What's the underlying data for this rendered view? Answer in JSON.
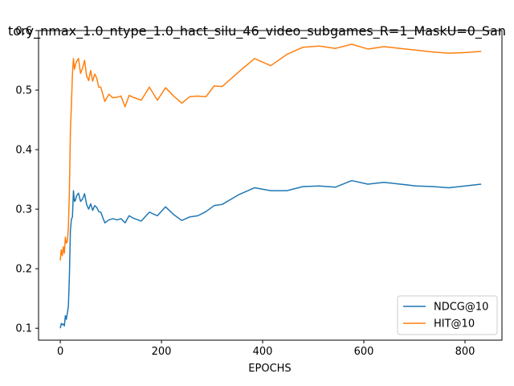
{
  "chart_data": {
    "type": "line",
    "title": "tory_nmax_1.0_ntype_1.0_hact_silu_46_video_subgames_R=1_MaskU=0_San",
    "xlabel": "EPOCHS",
    "ylabel": "",
    "xlim": [
      -43,
      873
    ],
    "ylim": [
      0.08,
      0.6
    ],
    "xticks": [
      0,
      200,
      400,
      600,
      800
    ],
    "yticks": [
      0.1,
      0.2,
      0.3,
      0.4,
      0.5,
      0.6
    ],
    "ytick_labels": [
      "0.1",
      "0.2",
      "0.3",
      "0.4",
      "0.5",
      "0.6"
    ],
    "legend_position": "lower-right",
    "grid": false,
    "series": [
      {
        "name": "NDCG@10",
        "color": "#1f77b4",
        "x": [
          0,
          2,
          4,
          6,
          8,
          10,
          12,
          14,
          16,
          18,
          20,
          22,
          24,
          26,
          28,
          30,
          32,
          36,
          40,
          44,
          48,
          52,
          56,
          60,
          64,
          68,
          72,
          76,
          80,
          88,
          96,
          104,
          112,
          120,
          128,
          136,
          144,
          160,
          176,
          192,
          208,
          224,
          240,
          256,
          272,
          288,
          304,
          320,
          352,
          384,
          416,
          448,
          480,
          512,
          544,
          576,
          608,
          640,
          672,
          704,
          736,
          768,
          800,
          832
        ],
        "y": [
          0.1,
          0.108,
          0.106,
          0.107,
          0.104,
          0.121,
          0.115,
          0.126,
          0.137,
          0.188,
          0.265,
          0.283,
          0.287,
          0.331,
          0.313,
          0.315,
          0.322,
          0.327,
          0.313,
          0.317,
          0.326,
          0.308,
          0.3,
          0.309,
          0.298,
          0.306,
          0.303,
          0.296,
          0.295,
          0.277,
          0.282,
          0.284,
          0.282,
          0.284,
          0.277,
          0.289,
          0.285,
          0.28,
          0.295,
          0.289,
          0.304,
          0.291,
          0.281,
          0.287,
          0.289,
          0.296,
          0.306,
          0.308,
          0.324,
          0.336,
          0.331,
          0.331,
          0.338,
          0.339,
          0.337,
          0.348,
          0.342,
          0.345,
          0.342,
          0.339,
          0.338,
          0.336,
          0.339,
          0.342
        ]
      },
      {
        "name": "HIT@10",
        "color": "#ff7f0e",
        "x": [
          0,
          2,
          4,
          6,
          8,
          10,
          12,
          14,
          16,
          18,
          20,
          22,
          24,
          26,
          28,
          30,
          32,
          36,
          40,
          44,
          48,
          52,
          56,
          60,
          64,
          68,
          72,
          76,
          80,
          88,
          96,
          104,
          112,
          120,
          128,
          136,
          144,
          160,
          176,
          192,
          208,
          224,
          240,
          256,
          272,
          288,
          304,
          320,
          352,
          384,
          416,
          448,
          480,
          512,
          544,
          576,
          608,
          640,
          672,
          704,
          736,
          768,
          800,
          832
        ],
        "y": [
          0.214,
          0.232,
          0.222,
          0.237,
          0.226,
          0.253,
          0.243,
          0.246,
          0.27,
          0.33,
          0.432,
          0.477,
          0.527,
          0.553,
          0.535,
          0.542,
          0.548,
          0.553,
          0.528,
          0.537,
          0.55,
          0.524,
          0.516,
          0.533,
          0.515,
          0.527,
          0.52,
          0.505,
          0.505,
          0.481,
          0.493,
          0.487,
          0.488,
          0.49,
          0.472,
          0.491,
          0.488,
          0.483,
          0.505,
          0.483,
          0.504,
          0.49,
          0.478,
          0.489,
          0.49,
          0.489,
          0.507,
          0.506,
          0.53,
          0.553,
          0.541,
          0.56,
          0.572,
          0.574,
          0.57,
          0.577,
          0.569,
          0.573,
          0.57,
          0.567,
          0.564,
          0.562,
          0.563,
          0.565
        ]
      }
    ]
  }
}
